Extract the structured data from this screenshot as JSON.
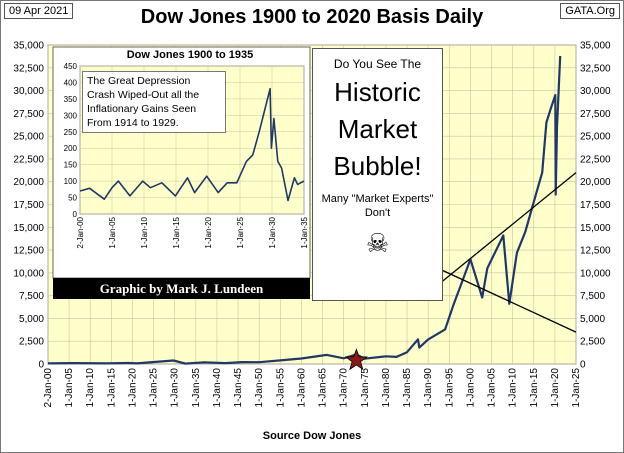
{
  "header": {
    "date": "09 Apr 2021",
    "title": "Dow Jones 1900 to 2020 Basis Daily",
    "site": "GATA.Org",
    "source": "Source Dow Jones"
  },
  "callout": {
    "question": "Do You See The",
    "headline": [
      "Historic",
      "Market",
      "Bubble!"
    ],
    "subtext": "Many \"Market Experts\"  Don't",
    "icon": "skull-crossbones-icon",
    "icon_glyph": "☠"
  },
  "banner": "Graphic by Mark J. Lundeen",
  "colors": {
    "plot_background": "#ffffcc",
    "grid": "#c8c4a0",
    "series": "#1f3864",
    "banner": "#000000",
    "marker": "#8b1a1a"
  },
  "inset_note": "The Great Depression Crash Wiped-Out all the Inflationary Gains Seen From 1914 to 1929.",
  "chart_data": [
    {
      "type": "line",
      "title": "Dow Jones 1900 to 2020 Basis Daily",
      "xlabel": "",
      "ylabel": "",
      "x_tick_labels": [
        "2-Jan-00",
        "1-Jan-05",
        "1-Jan-10",
        "1-Jan-15",
        "1-Jan-20",
        "1-Jan-25",
        "1-Jan-30",
        "1-Jan-35",
        "1-Jan-40",
        "1-Jan-45",
        "1-Jan-50",
        "1-Jan-55",
        "1-Jan-60",
        "1-Jan-65",
        "1-Jan-70",
        "1-Jan-75",
        "1-Jan-80",
        "1-Jan-85",
        "1-Jan-90",
        "1-Jan-95",
        "1-Jan-00",
        "1-Jan-05",
        "1-Jan-10",
        "1-Jan-15",
        "1-Jan-20",
        "1-Jan-25"
      ],
      "y_tick_labels": [
        "0",
        "2,500",
        "5,000",
        "7,500",
        "10,000",
        "12,500",
        "15,000",
        "17,500",
        "20,000",
        "22,500",
        "25,000",
        "27,500",
        "30,000",
        "32,500",
        "35,000"
      ],
      "xlim": [
        1900,
        2025
      ],
      "ylim": [
        0,
        35000
      ],
      "grid": true,
      "series": [
        {
          "x": [
            1900,
            1906,
            1914,
            1919,
            1921,
            1929.7,
            1932.5,
            1937,
            1942,
            1946,
            1950,
            1955,
            1960,
            1966,
            1970,
            1973,
            1974.9,
            1980,
            1982.5,
            1985,
            1987.6,
            1987.9,
            1990,
            1994,
            1996,
            1998,
            2000,
            2002.8,
            2004,
            2007.8,
            2009.2,
            2011,
            2013,
            2015,
            2017,
            2018,
            2019,
            2020.1,
            2020.2,
            2020.5,
            2021.25
          ],
          "y": [
            70,
            100,
            70,
            110,
            70,
            380,
            45,
            190,
            100,
            210,
            200,
            400,
            600,
            1000,
            630,
            1050,
            580,
            850,
            780,
            1300,
            2700,
            1800,
            2700,
            3800,
            6500,
            9000,
            11500,
            7300,
            10500,
            14100,
            6600,
            12200,
            14500,
            17800,
            21000,
            26500,
            28000,
            29500,
            18600,
            26000,
            33800
          ]
        }
      ],
      "marker": {
        "x": 1973,
        "y": 400,
        "shape": "star"
      },
      "trendlines": [
        {
          "from": [
            1990,
            7800
          ],
          "to": [
            2025,
            21000
          ]
        },
        {
          "from": [
            1990,
            11000
          ],
          "to": [
            2025,
            3500
          ]
        }
      ]
    },
    {
      "type": "line",
      "title": "Dow Jones 1900 to 1935",
      "xlabel": "",
      "ylabel": "",
      "x_tick_labels": [
        "2-Jan-00",
        "1-Jan-05",
        "1-Jan-10",
        "1-Jan-15",
        "1-Jan-20",
        "1-Jan-25",
        "1-Jan-30",
        "1-Jan-35"
      ],
      "y_tick_labels": [
        "0",
        "50",
        "100",
        "150",
        "200",
        "250",
        "300",
        "350",
        "400",
        "450"
      ],
      "xlim": [
        1900,
        1935
      ],
      "ylim": [
        0,
        450
      ],
      "grid": true,
      "series": [
        {
          "x": [
            1900,
            1901.5,
            1903.8,
            1905,
            1906,
            1907.8,
            1909.8,
            1911,
            1912.8,
            1914.9,
            1916.8,
            1917.9,
            1919.8,
            1921.6,
            1923,
            1924.5,
            1926,
            1927,
            1928,
            1929.7,
            1929.9,
            1930.3,
            1930.9,
            1931.5,
            1932.5,
            1933.5,
            1934,
            1935
          ],
          "y": [
            70,
            78,
            45,
            80,
            100,
            55,
            100,
            80,
            95,
            55,
            110,
            65,
            115,
            65,
            95,
            95,
            160,
            180,
            250,
            381,
            200,
            290,
            160,
            140,
            41,
            110,
            90,
            100
          ]
        }
      ]
    }
  ]
}
